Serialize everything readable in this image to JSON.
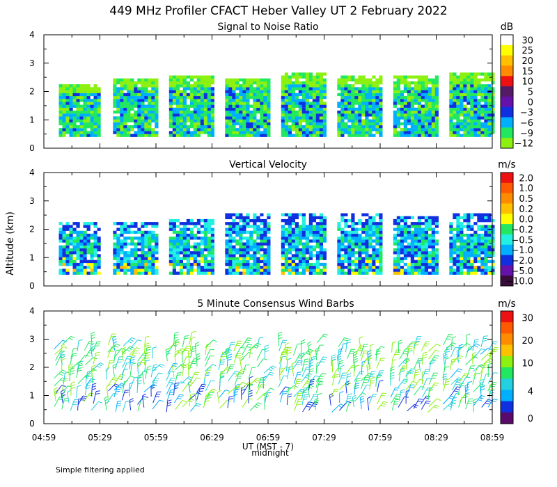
{
  "title": "449 MHz Profiler CFACT Heber Valley UT  2 February 2022",
  "ylabel": "Altitude (km)",
  "xlabel": "UT  (MST - 7)",
  "midnight_label": "midnight",
  "footnote": "Simple filtering applied",
  "x_ticks": [
    "04:59",
    "05:29",
    "05:59",
    "06:29",
    "06:59",
    "07:29",
    "07:59",
    "08:29",
    "08:59"
  ],
  "y_ticks": [
    "0",
    "1",
    "2",
    "3",
    "4"
  ],
  "chart_data": [
    {
      "type": "heatmap",
      "title": "Signal to Noise Ratio",
      "units": "dB",
      "xlim": [
        "04:59",
        "08:59"
      ],
      "ylim": [
        0,
        4
      ],
      "colorbar": {
        "labels": [
          "30",
          "25",
          "20",
          "15",
          "10",
          "5",
          "0",
          "−3",
          "−6",
          "−9",
          "−12"
        ],
        "colors": [
          "#ffffff",
          "#ffff00",
          "#ffc000",
          "#ff8c00",
          "#ee1111",
          "#551a66",
          "#6611aa",
          "#1030e0",
          "#00b0ff",
          "#22e860",
          "#8cf010"
        ]
      },
      "blocks": [
        {
          "start": "05:07",
          "end": "05:29",
          "alt_min": 0.4,
          "alt_max": 2.2
        },
        {
          "start": "05:36",
          "end": "05:59",
          "alt_min": 0.4,
          "alt_max": 2.4
        },
        {
          "start": "06:06",
          "end": "06:29",
          "alt_min": 0.4,
          "alt_max": 2.5
        },
        {
          "start": "06:36",
          "end": "06:59",
          "alt_min": 0.4,
          "alt_max": 2.4
        },
        {
          "start": "07:06",
          "end": "07:29",
          "alt_min": 0.4,
          "alt_max": 2.6
        },
        {
          "start": "07:36",
          "end": "07:59",
          "alt_min": 0.4,
          "alt_max": 2.5
        },
        {
          "start": "08:06",
          "end": "08:29",
          "alt_min": 0.4,
          "alt_max": 2.5
        },
        {
          "start": "08:36",
          "end": "08:59",
          "alt_min": 0.4,
          "alt_max": 2.6
        }
      ]
    },
    {
      "type": "heatmap",
      "title": "Vertical Velocity",
      "units": "m/s",
      "xlim": [
        "04:59",
        "08:59"
      ],
      "ylim": [
        0,
        4
      ],
      "colorbar": {
        "labels": [
          "2.0",
          "1.0",
          "0.5",
          "0.2",
          "0.0",
          "−0.2",
          "−0.5",
          "−1.0",
          "−2.0",
          "−5.0",
          "−10.0"
        ],
        "colors": [
          "#ee1111",
          "#ff5a00",
          "#ff8c00",
          "#ffc000",
          "#ffff00",
          "#22e860",
          "#22f0e0",
          "#00b0ff",
          "#1030e0",
          "#6611aa",
          "#3a0a3a"
        ]
      },
      "blocks": [
        {
          "start": "05:07",
          "end": "05:29",
          "alt_min": 0.4,
          "alt_max": 2.2
        },
        {
          "start": "05:36",
          "end": "05:59",
          "alt_min": 0.4,
          "alt_max": 2.2
        },
        {
          "start": "06:06",
          "end": "06:29",
          "alt_min": 0.4,
          "alt_max": 2.3
        },
        {
          "start": "06:36",
          "end": "06:59",
          "alt_min": 0.4,
          "alt_max": 2.5
        },
        {
          "start": "07:06",
          "end": "07:29",
          "alt_min": 0.4,
          "alt_max": 2.5
        },
        {
          "start": "07:36",
          "end": "07:59",
          "alt_min": 0.4,
          "alt_max": 2.5
        },
        {
          "start": "08:06",
          "end": "08:29",
          "alt_min": 0.4,
          "alt_max": 2.4
        },
        {
          "start": "08:36",
          "end": "08:59",
          "alt_min": 0.4,
          "alt_max": 2.5
        }
      ]
    },
    {
      "type": "wind_barbs",
      "title": "5 Minute Consensus Wind Barbs",
      "units": "m/s",
      "xlim": [
        "04:59",
        "08:59"
      ],
      "ylim": [
        0,
        4
      ],
      "colorbar": {
        "labels": [
          "30",
          "20",
          "10",
          "4",
          "0"
        ],
        "colors": [
          "#ee1111",
          "#ff5a00",
          "#ff8c00",
          "#ffc000",
          "#8cf010",
          "#22e860",
          "#22d0e0",
          "#00b0ff",
          "#1030e0",
          "#5a0a6a"
        ]
      },
      "barb_alt_min": 0.4,
      "barb_alt_max": 3.0
    }
  ]
}
